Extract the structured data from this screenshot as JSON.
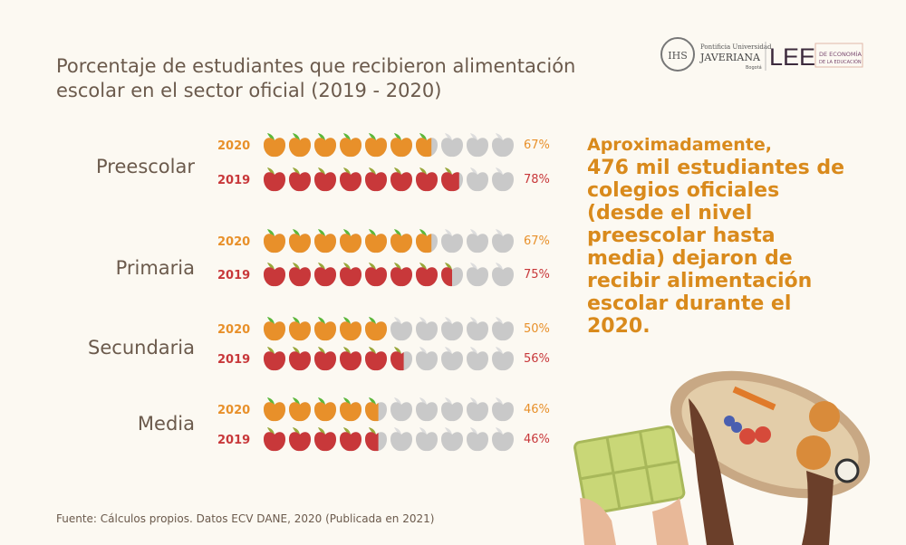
{
  "title": "Porcentaje de estudiantes que recibieron alimentación escolar en el sector oficial (2019 - 2020)",
  "logos": {
    "javeriana": "Pontificia Universidad JAVERIANA Bogotá",
    "lee": "LEE",
    "lee_sub": "LABORATORIO DE ECONOMÍA DE LA EDUCACIÓN"
  },
  "colors": {
    "2020": "#e8902a",
    "2019": "#c8383a",
    "empty": "#c9c9c9",
    "background": "#fcf9f2"
  },
  "chart_data": {
    "type": "pictogram",
    "icon": "apple-icon",
    "icons_per_row": 10,
    "categories": [
      "Preescolar",
      "Primaria",
      "Secundaria",
      "Media"
    ],
    "series": [
      {
        "name": "2020",
        "values": [
          67,
          67,
          50,
          46
        ],
        "labels": [
          "67%",
          "67%",
          "50%",
          "46%"
        ]
      },
      {
        "name": "2019",
        "values": [
          78,
          75,
          56,
          46
        ],
        "labels": [
          "78%",
          "75%",
          "56%",
          "46%"
        ]
      }
    ]
  },
  "callout": {
    "lead": "Aproximadamente,",
    "body": "476 mil estudiantes de colegios oficiales (desde el nivel preescolar hasta media) dejaron de recibir alimentación escolar durante el 2020."
  },
  "source": "Fuente: Cálculos propios. Datos ECV DANE, 2020 (Publicada en 2021)"
}
